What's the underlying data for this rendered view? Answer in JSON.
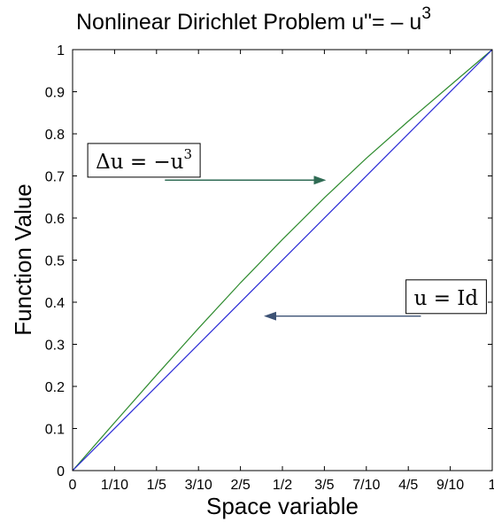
{
  "chart_data": {
    "type": "line",
    "title": {
      "main": "Nonlinear Dirichlet Problem u\"= – u",
      "superscript": "3"
    },
    "xlabel": "Space variable",
    "ylabel": "Function Value",
    "xlim": [
      0,
      1
    ],
    "ylim": [
      0,
      1
    ],
    "x_ticks": [
      {
        "value": 0,
        "label": "0"
      },
      {
        "value": 0.1,
        "label": "1/10"
      },
      {
        "value": 0.2,
        "label": "1/5"
      },
      {
        "value": 0.3,
        "label": "3/10"
      },
      {
        "value": 0.4,
        "label": "2/5"
      },
      {
        "value": 0.5,
        "label": "1/2"
      },
      {
        "value": 0.6,
        "label": "3/5"
      },
      {
        "value": 0.7,
        "label": "7/10"
      },
      {
        "value": 0.8,
        "label": "4/5"
      },
      {
        "value": 0.9,
        "label": "9/10"
      },
      {
        "value": 1,
        "label": "1"
      }
    ],
    "y_ticks": [
      {
        "value": 0,
        "label": "0"
      },
      {
        "value": 0.1,
        "label": "0.1"
      },
      {
        "value": 0.2,
        "label": "0.2"
      },
      {
        "value": 0.3,
        "label": "0.3"
      },
      {
        "value": 0.4,
        "label": "0.4"
      },
      {
        "value": 0.5,
        "label": "0.5"
      },
      {
        "value": 0.6,
        "label": "0.6"
      },
      {
        "value": 0.7,
        "label": "0.7"
      },
      {
        "value": 0.8,
        "label": "0.8"
      },
      {
        "value": 0.9,
        "label": "0.9"
      },
      {
        "value": 1,
        "label": "1"
      }
    ],
    "grid": false,
    "series": [
      {
        "color": "#2e8b2e",
        "x": [
          0,
          0.1,
          0.2,
          0.3,
          0.4,
          0.5,
          0.6,
          0.7,
          0.8,
          0.9,
          1
        ],
        "y": [
          0,
          0.114,
          0.227,
          0.338,
          0.446,
          0.549,
          0.648,
          0.742,
          0.83,
          0.915,
          1
        ]
      },
      {
        "color": "#2b2bd6",
        "x": [
          0,
          1
        ],
        "y": [
          0,
          1
        ]
      }
    ],
    "annotations": [
      {
        "text_main": "Δu = −u",
        "text_sup": "3",
        "arrow_color": "#2f6b54",
        "box_center": [
          0.17,
          0.735
        ],
        "arrow_from": [
          0.22,
          0.69
        ],
        "arrow_to": [
          0.6,
          0.69
        ]
      },
      {
        "text_main": "u = Id",
        "text_sup": "",
        "arrow_color": "#3d5275",
        "box_center": [
          0.89,
          0.411
        ],
        "arrow_from": [
          0.83,
          0.367
        ],
        "arrow_to": [
          0.46,
          0.367
        ]
      }
    ]
  }
}
